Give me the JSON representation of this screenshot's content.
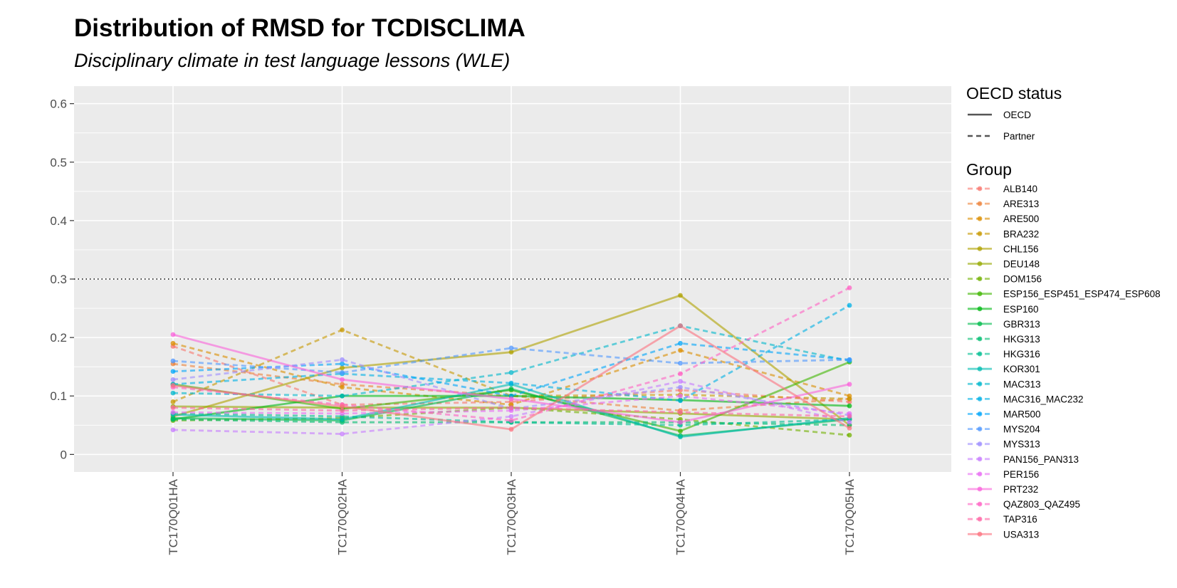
{
  "title": "Distribution of RMSD for TCDISCLIMA",
  "subtitle": "Disciplinary climate in test language lessons (WLE)",
  "chart_data": {
    "type": "line",
    "title": "Distribution of RMSD for TCDISCLIMA",
    "subtitle": "Disciplinary climate in test language lessons (WLE)",
    "xlabel": "",
    "ylabel": "",
    "categories": [
      "TC170Q01HA",
      "TC170Q02HA",
      "TC170Q03HA",
      "TC170Q04HA",
      "TC170Q05HA"
    ],
    "ylim": [
      -0.03,
      0.63
    ],
    "yticks": [
      0,
      0.1,
      0.2,
      0.3,
      0.4,
      0.5,
      0.6
    ],
    "ytick_labels": [
      "0",
      "0.1",
      "0.2",
      "0.3",
      "0.4",
      "0.5",
      "0.6"
    ],
    "reference_line": {
      "y": 0.3,
      "style": "dotted",
      "color": "#000000"
    },
    "grid": true,
    "panel_background": "#ebebeb",
    "legend_position": "right",
    "legend": {
      "linetype_title": "OECD status",
      "linetype_entries": [
        {
          "label": "OECD",
          "dash": "solid"
        },
        {
          "label": "Partner",
          "dash": "dashed"
        }
      ],
      "group_title": "Group"
    },
    "series": [
      {
        "name": "ALB140",
        "color": "#F8766D",
        "status": "Partner",
        "values": [
          0.185,
          0.085,
          0.09,
          0.11,
          0.09
        ]
      },
      {
        "name": "ARE313",
        "color": "#EC8239",
        "status": "Partner",
        "values": [
          0.155,
          0.12,
          0.1,
          0.075,
          0.095
        ]
      },
      {
        "name": "ARE500",
        "color": "#DB8E00",
        "status": "Partner",
        "values": [
          0.19,
          0.115,
          0.085,
          0.178,
          0.1
        ]
      },
      {
        "name": "BRA232",
        "color": "#C79800",
        "status": "Partner",
        "values": [
          0.09,
          0.213,
          0.1,
          0.102,
          0.095
        ]
      },
      {
        "name": "CHL156",
        "color": "#AFA100",
        "status": "OECD",
        "values": [
          0.065,
          0.148,
          0.175,
          0.272,
          0.05
        ]
      },
      {
        "name": "DEU148",
        "color": "#96A900",
        "status": "OECD",
        "values": [
          0.082,
          0.08,
          0.08,
          0.07,
          0.06
        ]
      },
      {
        "name": "DOM156",
        "color": "#72B000",
        "status": "Partner",
        "values": [
          0.058,
          0.062,
          0.08,
          0.06,
          0.033
        ]
      },
      {
        "name": "ESP156_ESP451_ESP474_ESP608",
        "color": "#3FB500",
        "status": "OECD",
        "values": [
          0.12,
          0.078,
          0.11,
          0.04,
          0.158
        ]
      },
      {
        "name": "ESP160",
        "color": "#00B813",
        "status": "OECD",
        "values": [
          0.06,
          0.1,
          0.1,
          0.093,
          0.083
        ]
      },
      {
        "name": "GBR313",
        "color": "#00BB4B",
        "status": "OECD",
        "values": [
          0.062,
          0.058,
          0.112,
          0.032,
          0.06
        ]
      },
      {
        "name": "HKG313",
        "color": "#00BD70",
        "status": "Partner",
        "values": [
          0.06,
          0.055,
          0.055,
          0.055,
          0.05
        ]
      },
      {
        "name": "HKG316",
        "color": "#00BE91",
        "status": "Partner",
        "values": [
          0.07,
          0.065,
          0.055,
          0.05,
          0.06
        ]
      },
      {
        "name": "KOR301",
        "color": "#00BCB0",
        "status": "OECD",
        "values": [
          0.068,
          0.06,
          0.12,
          0.03,
          0.062
        ]
      },
      {
        "name": "MAC313",
        "color": "#00B7CC",
        "status": "Partner",
        "values": [
          0.105,
          0.1,
          0.14,
          0.22,
          0.16
        ]
      },
      {
        "name": "MAC316_MAC232",
        "color": "#00B0E5",
        "status": "Partner",
        "values": [
          0.12,
          0.138,
          0.122,
          0.092,
          0.255
        ]
      },
      {
        "name": "MAR500",
        "color": "#00A5FA",
        "status": "Partner",
        "values": [
          0.142,
          0.155,
          0.1,
          0.19,
          0.162
        ]
      },
      {
        "name": "MYS204",
        "color": "#4F97FF",
        "status": "Partner",
        "values": [
          0.16,
          0.14,
          0.182,
          0.156,
          0.162
        ]
      },
      {
        "name": "MYS313",
        "color": "#9C8CFF",
        "status": "Partner",
        "values": [
          0.128,
          0.162,
          0.078,
          0.115,
          0.067
        ]
      },
      {
        "name": "PAN156_PAN313",
        "color": "#C77CFF",
        "status": "Partner",
        "values": [
          0.042,
          0.035,
          0.065,
          0.125,
          0.055
        ]
      },
      {
        "name": "PER156",
        "color": "#E76BF3",
        "status": "Partner",
        "values": [
          0.072,
          0.07,
          0.075,
          0.1,
          0.07
        ]
      },
      {
        "name": "PRT232",
        "color": "#FA62DB",
        "status": "OECD",
        "values": [
          0.205,
          0.128,
          0.095,
          0.055,
          0.12
        ]
      },
      {
        "name": "QAZ803_QAZ495",
        "color": "#FF61C3",
        "status": "Partner",
        "values": [
          0.115,
          0.085,
          0.058,
          0.138,
          0.285
        ]
      },
      {
        "name": "TAP316",
        "color": "#FF64A4",
        "status": "Partner",
        "values": [
          0.08,
          0.075,
          0.08,
          0.072,
          0.065
        ]
      },
      {
        "name": "USA313",
        "color": "#FC717F",
        "status": "OECD",
        "values": [
          0.118,
          0.082,
          0.043,
          0.22,
          0.045
        ]
      }
    ]
  }
}
